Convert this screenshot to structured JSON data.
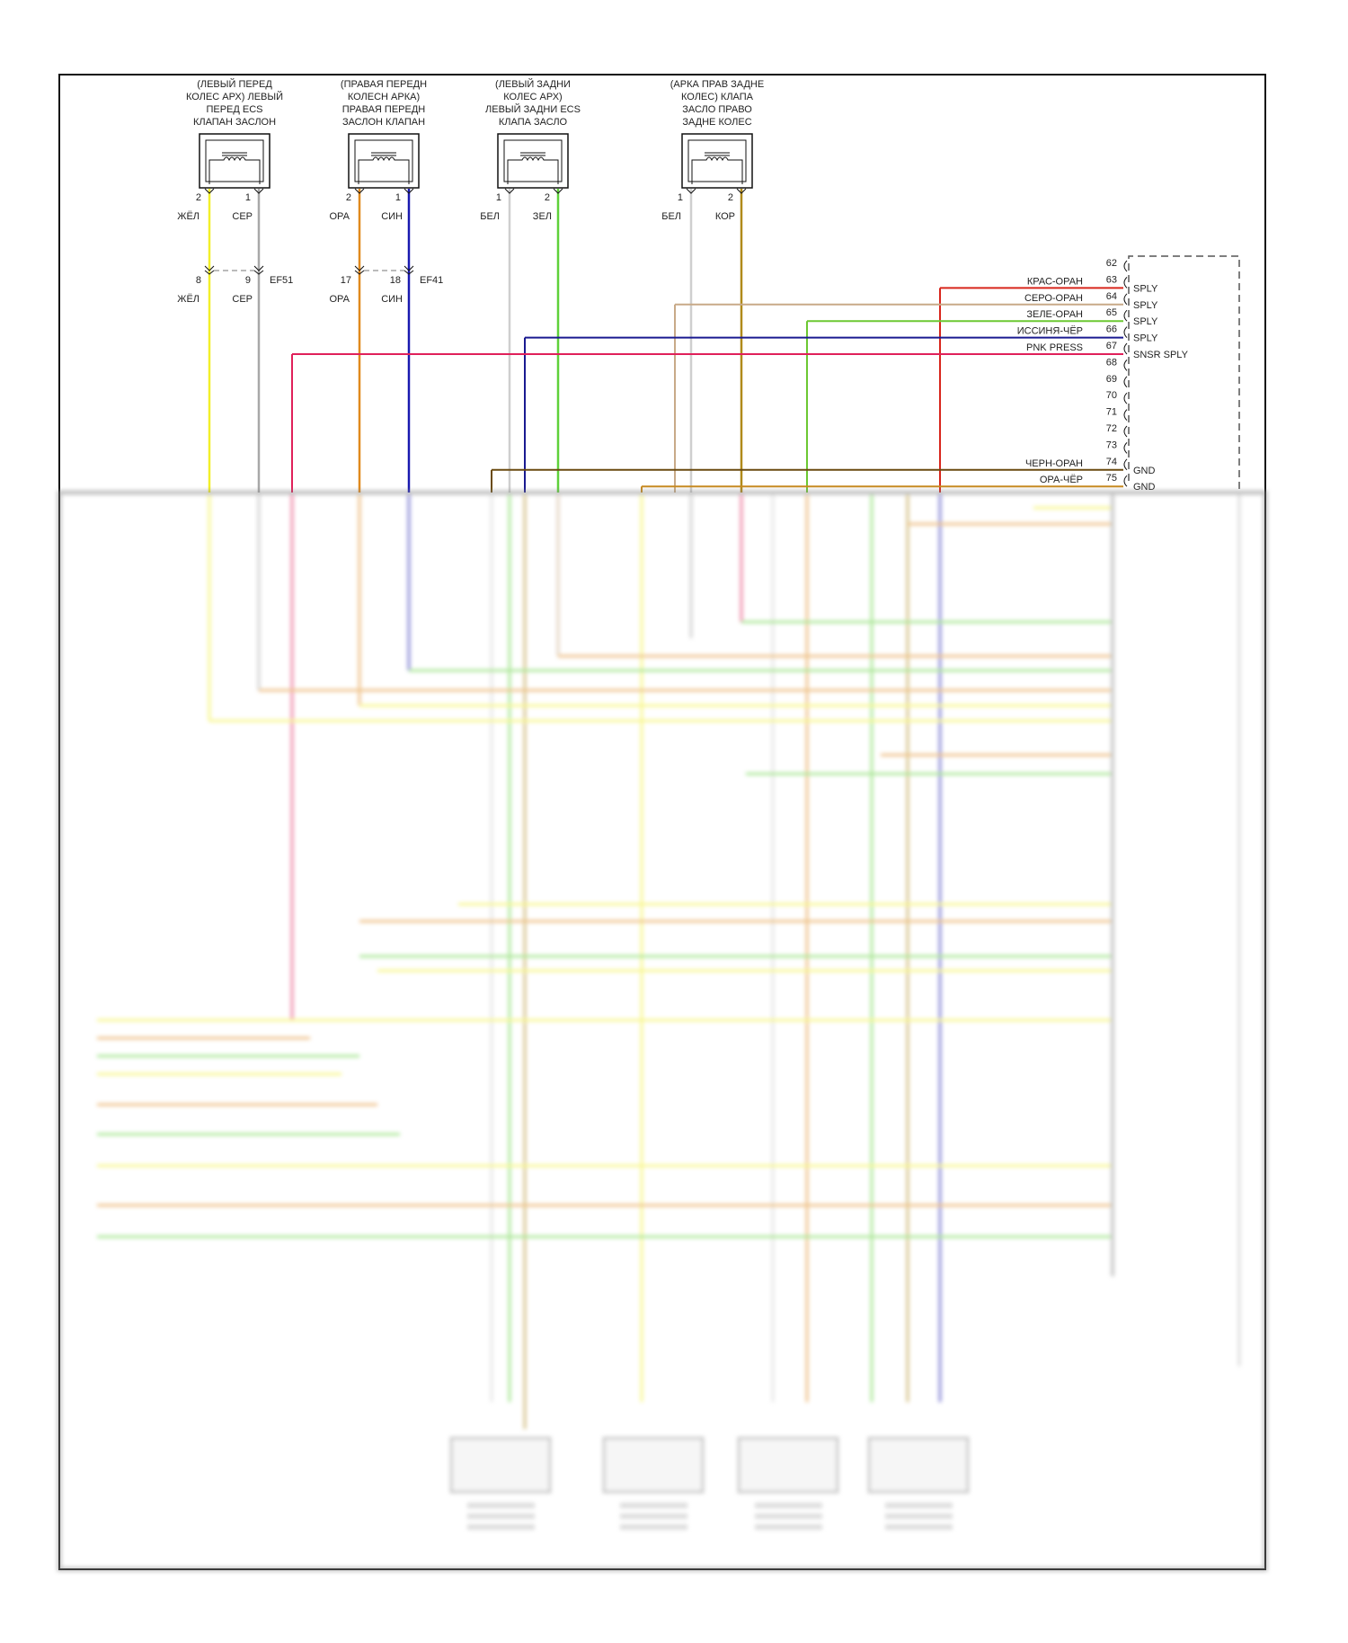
{
  "components": [
    {
      "title": [
        "(ЛЕВЫЙ ПЕРЕД",
        "КОЛЕС АРХ) ЛЕВЫЙ",
        "ПЕРЕД ECS",
        "КЛАПАН ЗАСЛОН"
      ],
      "pins": [
        {
          "num": "2",
          "color_label": "ЖЁЛ",
          "wire": "#f2ef2a"
        },
        {
          "num": "1",
          "color_label": "СЕР",
          "wire": "#a8a8a8"
        }
      ],
      "splice": {
        "pins": [
          "8",
          "9"
        ],
        "name": "EF51",
        "labels": [
          "ЖЁЛ",
          "СЕР"
        ]
      }
    },
    {
      "title": [
        "(ПРАВАЯ ПЕРЕДН",
        "КОЛЕСН АРКА)",
        "ПРАВАЯ ПЕРЕДН",
        "ЗАСЛОН КЛАПАН"
      ],
      "pins": [
        {
          "num": "2",
          "color_label": "ОРА",
          "wire": "#e08a1e"
        },
        {
          "num": "1",
          "color_label": "СИН",
          "wire": "#1a1ab0"
        }
      ],
      "splice": {
        "pins": [
          "17",
          "18"
        ],
        "name": "EF41",
        "labels": [
          "ОРА",
          "СИН"
        ]
      }
    },
    {
      "title": [
        "(ЛЕВЫЙ ЗАДНИ",
        "КОЛЕС АРХ)",
        "ЛЕВЫЙ ЗАДНИ ECS",
        "КЛАПА ЗАСЛО"
      ],
      "pins": [
        {
          "num": "1",
          "color_label": "БЕЛ",
          "wire": "#cfcfcf"
        },
        {
          "num": "2",
          "color_label": "ЗЕЛ",
          "wire": "#5fd13a"
        }
      ]
    },
    {
      "title": [
        "(АРКА ПРАВ ЗАДНЕ",
        "КОЛЕС) КЛАПА",
        "ЗАСЛО ПРАВО",
        "ЗАДНЕ КОЛЕС"
      ],
      "pins": [
        {
          "num": "1",
          "color_label": "БЕЛ",
          "wire": "#cfcfcf"
        },
        {
          "num": "2",
          "color_label": "КОР",
          "wire": "#b08a1a"
        }
      ]
    }
  ],
  "module_pins": [
    {
      "num": "62",
      "wire_label": "",
      "function": ""
    },
    {
      "num": "63",
      "wire_label": "КРАС-ОРАН",
      "function": "SPLY",
      "wire": "#d8261c"
    },
    {
      "num": "64",
      "wire_label": "СЕРО-ОРАН",
      "function": "SPLY",
      "wire": "#c8aa88"
    },
    {
      "num": "65",
      "wire_label": "ЗЕЛЕ-ОРАН",
      "function": "SPLY",
      "wire": "#6cc832"
    },
    {
      "num": "66",
      "wire_label": "ИССИНЯ-ЧЁР",
      "function": "SPLY",
      "wire": "#1a1a90"
    },
    {
      "num": "67",
      "wire_label": "PNK PRESS",
      "function": "SNSR SPLY",
      "wire": "#e0205a"
    },
    {
      "num": "68",
      "wire_label": "",
      "function": ""
    },
    {
      "num": "69",
      "wire_label": "",
      "function": ""
    },
    {
      "num": "70",
      "wire_label": "",
      "function": ""
    },
    {
      "num": "71",
      "wire_label": "",
      "function": ""
    },
    {
      "num": "72",
      "wire_label": "",
      "function": ""
    },
    {
      "num": "73",
      "wire_label": "",
      "function": ""
    },
    {
      "num": "74",
      "wire_label": "ЧЕРН-ОРАН",
      "function": "GND",
      "wire": "#6a4a10"
    },
    {
      "num": "75",
      "wire_label": "ОРА-ЧЁР",
      "function": "GND",
      "wire": "#c88a20"
    }
  ]
}
